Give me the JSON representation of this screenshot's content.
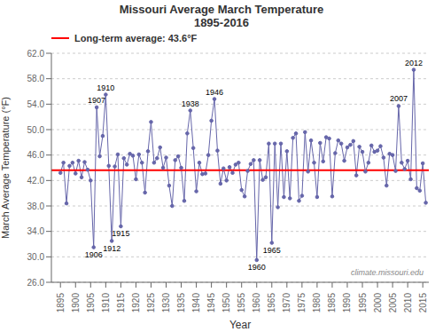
{
  "chart_data": {
    "type": "line",
    "title": "Missouri Average March Temperature\n1895-2016",
    "xlabel": "Year",
    "ylabel": "March Average Temperature (°F)",
    "x": [
      1895,
      1896,
      1897,
      1898,
      1899,
      1900,
      1901,
      1902,
      1903,
      1904,
      1905,
      1906,
      1907,
      1908,
      1909,
      1910,
      1911,
      1912,
      1913,
      1914,
      1915,
      1916,
      1917,
      1918,
      1919,
      1920,
      1921,
      1922,
      1923,
      1924,
      1925,
      1926,
      1927,
      1928,
      1929,
      1930,
      1931,
      1932,
      1933,
      1934,
      1935,
      1936,
      1937,
      1938,
      1939,
      1940,
      1941,
      1942,
      1943,
      1944,
      1945,
      1946,
      1947,
      1948,
      1949,
      1950,
      1951,
      1952,
      1953,
      1954,
      1955,
      1956,
      1957,
      1958,
      1959,
      1960,
      1961,
      1962,
      1963,
      1964,
      1965,
      1966,
      1967,
      1968,
      1969,
      1970,
      1971,
      1972,
      1973,
      1974,
      1975,
      1976,
      1977,
      1978,
      1979,
      1980,
      1981,
      1982,
      1983,
      1984,
      1985,
      1986,
      1987,
      1988,
      1989,
      1990,
      1991,
      1992,
      1993,
      1994,
      1995,
      1996,
      1997,
      1998,
      1999,
      2000,
      2001,
      2002,
      2003,
      2004,
      2005,
      2006,
      2007,
      2008,
      2009,
      2010,
      2011,
      2012,
      2013,
      2014,
      2015,
      2016
    ],
    "values": [
      43.2,
      44.8,
      38.4,
      44.3,
      44.8,
      43.1,
      45.1,
      42.5,
      44.9,
      43.7,
      42.0,
      31.5,
      53.5,
      45.8,
      49.0,
      55.5,
      44.3,
      32.5,
      44.2,
      46.1,
      34.8,
      45.5,
      44.5,
      46.2,
      45.9,
      42.2,
      46.1,
      44.8,
      40.1,
      46.6,
      51.2,
      44.8,
      45.5,
      47.2,
      44.0,
      45.6,
      41.2,
      38.0,
      45.2,
      45.8,
      44.0,
      38.8,
      49.4,
      53.0,
      47.1,
      40.3,
      44.8,
      43.0,
      43.1,
      46.0,
      51.4,
      54.8,
      46.7,
      41.5,
      43.9,
      42.0,
      44.1,
      43.2,
      44.5,
      44.8,
      40.5,
      39.5,
      43.5,
      44.6,
      45.2,
      29.5,
      45.2,
      42.1,
      42.5,
      47.8,
      32.2,
      47.8,
      37.8,
      47.8,
      39.4,
      46.6,
      39.2,
      48.7,
      49.4,
      38.8,
      39.6,
      49.6,
      43.4,
      48.3,
      44.8,
      39.4,
      47.9,
      45.0,
      48.8,
      48.6,
      39.5,
      46.3,
      48.3,
      47.8,
      45.1,
      47.2,
      47.6,
      48.2,
      42.8,
      47.3,
      46.5,
      43.4,
      44.8,
      47.5,
      46.5,
      46.7,
      47.4,
      45.6,
      41.2,
      46.2,
      46.0,
      43.5,
      53.7,
      44.8,
      43.8,
      45.1,
      42.2,
      59.4,
      40.8,
      40.4,
      44.7,
      38.5
    ],
    "color": "#6666AA",
    "marker": "circle",
    "xlim": [
      1892,
      2017
    ],
    "xticks": [
      1895,
      1900,
      1905,
      1910,
      1915,
      1920,
      1925,
      1930,
      1935,
      1940,
      1945,
      1950,
      1955,
      1960,
      1965,
      1970,
      1975,
      1980,
      1985,
      1990,
      1995,
      2000,
      2005,
      2010,
      2015
    ],
    "ylim": [
      26,
      62
    ],
    "yticks": [
      {
        "value": 26,
        "label": "26.0"
      },
      {
        "value": 30,
        "label": "30.0"
      },
      {
        "value": 34,
        "label": "34.0"
      },
      {
        "value": 38,
        "label": "38.0"
      },
      {
        "value": 42,
        "label": "42.0"
      },
      {
        "value": 46,
        "label": "46.0"
      },
      {
        "value": 50,
        "label": "50.0"
      },
      {
        "value": 54,
        "label": "54.0"
      },
      {
        "value": 58,
        "label": "58.0"
      },
      {
        "value": 62,
        "label": "62.0"
      }
    ],
    "grid": "y",
    "legend": "upper left",
    "reference_line": {
      "name": "Long-term average: 43.6°F",
      "value": 43.6,
      "color": "red"
    },
    "annotations": [
      {
        "text": "1906",
        "x": 1906,
        "y": 31.5
      },
      {
        "text": "1907",
        "x": 1907,
        "y": 53.5
      },
      {
        "text": "1910",
        "x": 1910,
        "y": 55.5
      },
      {
        "text": "1912",
        "x": 1912,
        "y": 32.5
      },
      {
        "text": "1915",
        "x": 1915,
        "y": 34.8
      },
      {
        "text": "1938",
        "x": 1938,
        "y": 53.0
      },
      {
        "text": "1946",
        "x": 1946,
        "y": 54.8
      },
      {
        "text": "1960",
        "x": 1960,
        "y": 29.5
      },
      {
        "text": "1965",
        "x": 1965,
        "y": 32.2
      },
      {
        "text": "2007",
        "x": 2007,
        "y": 53.7
      },
      {
        "text": "2012",
        "x": 2012,
        "y": 59.4
      }
    ],
    "watermark": "climate.missouri.edu"
  }
}
